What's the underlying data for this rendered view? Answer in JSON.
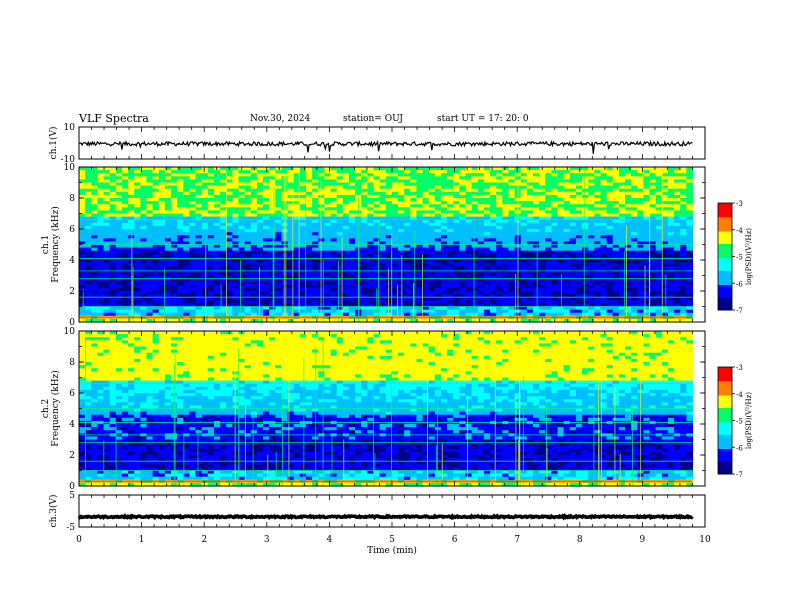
{
  "header": {
    "title": "VLF Spectra",
    "date": "Nov.30, 2024",
    "station": "station= OUJ",
    "start_ut": "start  UT =   17: 20: 0"
  },
  "colors": {
    "background": "#ffffff",
    "axis": "#000000",
    "colormap": [
      "#00008b",
      "#0000ff",
      "#00bfff",
      "#00ffff",
      "#00ff66",
      "#ffff00",
      "#ff8000",
      "#ff0000",
      "#ffffff"
    ]
  },
  "chart_data": [
    {
      "id": "ch1-waveform",
      "type": "line",
      "ylabel": "ch.1(V)",
      "ylim": [
        -10,
        10
      ],
      "yticks": [
        10,
        -10
      ],
      "xlim": [
        0,
        10
      ],
      "series": [
        {
          "values_level_approx": -0.5,
          "x_end": 9.8
        }
      ]
    },
    {
      "id": "ch1-spectrogram",
      "type": "heatmap",
      "ylabel_line1": "ch.1",
      "ylabel_line2": "Frequency  (kHz)",
      "ylim": [
        0,
        10
      ],
      "yticks": [
        0,
        2,
        4,
        6,
        8,
        10
      ],
      "xlim": [
        0,
        10
      ],
      "colorbar": {
        "label": "log(PSD)(V²/Hz)",
        "range": [
          -7,
          -3
        ],
        "ticks": [
          "-3",
          "-4",
          "-5",
          "-6",
          "-7"
        ]
      }
    },
    {
      "id": "ch2-spectrogram",
      "type": "heatmap",
      "ylabel_line1": "ch.2",
      "ylabel_line2": "Frequency  (kHz)",
      "ylim": [
        0,
        10
      ],
      "yticks": [
        0,
        2,
        4,
        6,
        8,
        10
      ],
      "xlim": [
        0,
        10
      ],
      "colorbar": {
        "label": "log(PSD)(V²/Hz)",
        "range": [
          -7,
          -3
        ],
        "ticks": [
          "-3",
          "-4",
          "-5",
          "-6",
          "-7"
        ]
      }
    },
    {
      "id": "ch3-waveform",
      "type": "line",
      "ylabel": "ch.3(V)",
      "ylim": [
        -5,
        5
      ],
      "yticks": [
        5,
        -5
      ],
      "xlim": [
        0,
        10
      ],
      "series": [
        {
          "values_level_approx": -1.8,
          "x_end": 9.8
        }
      ],
      "xlabel": "Time  (min)",
      "xticks": [
        "0",
        "1",
        "2",
        "3",
        "4",
        "5",
        "6",
        "7",
        "8",
        "9",
        "10"
      ]
    }
  ]
}
